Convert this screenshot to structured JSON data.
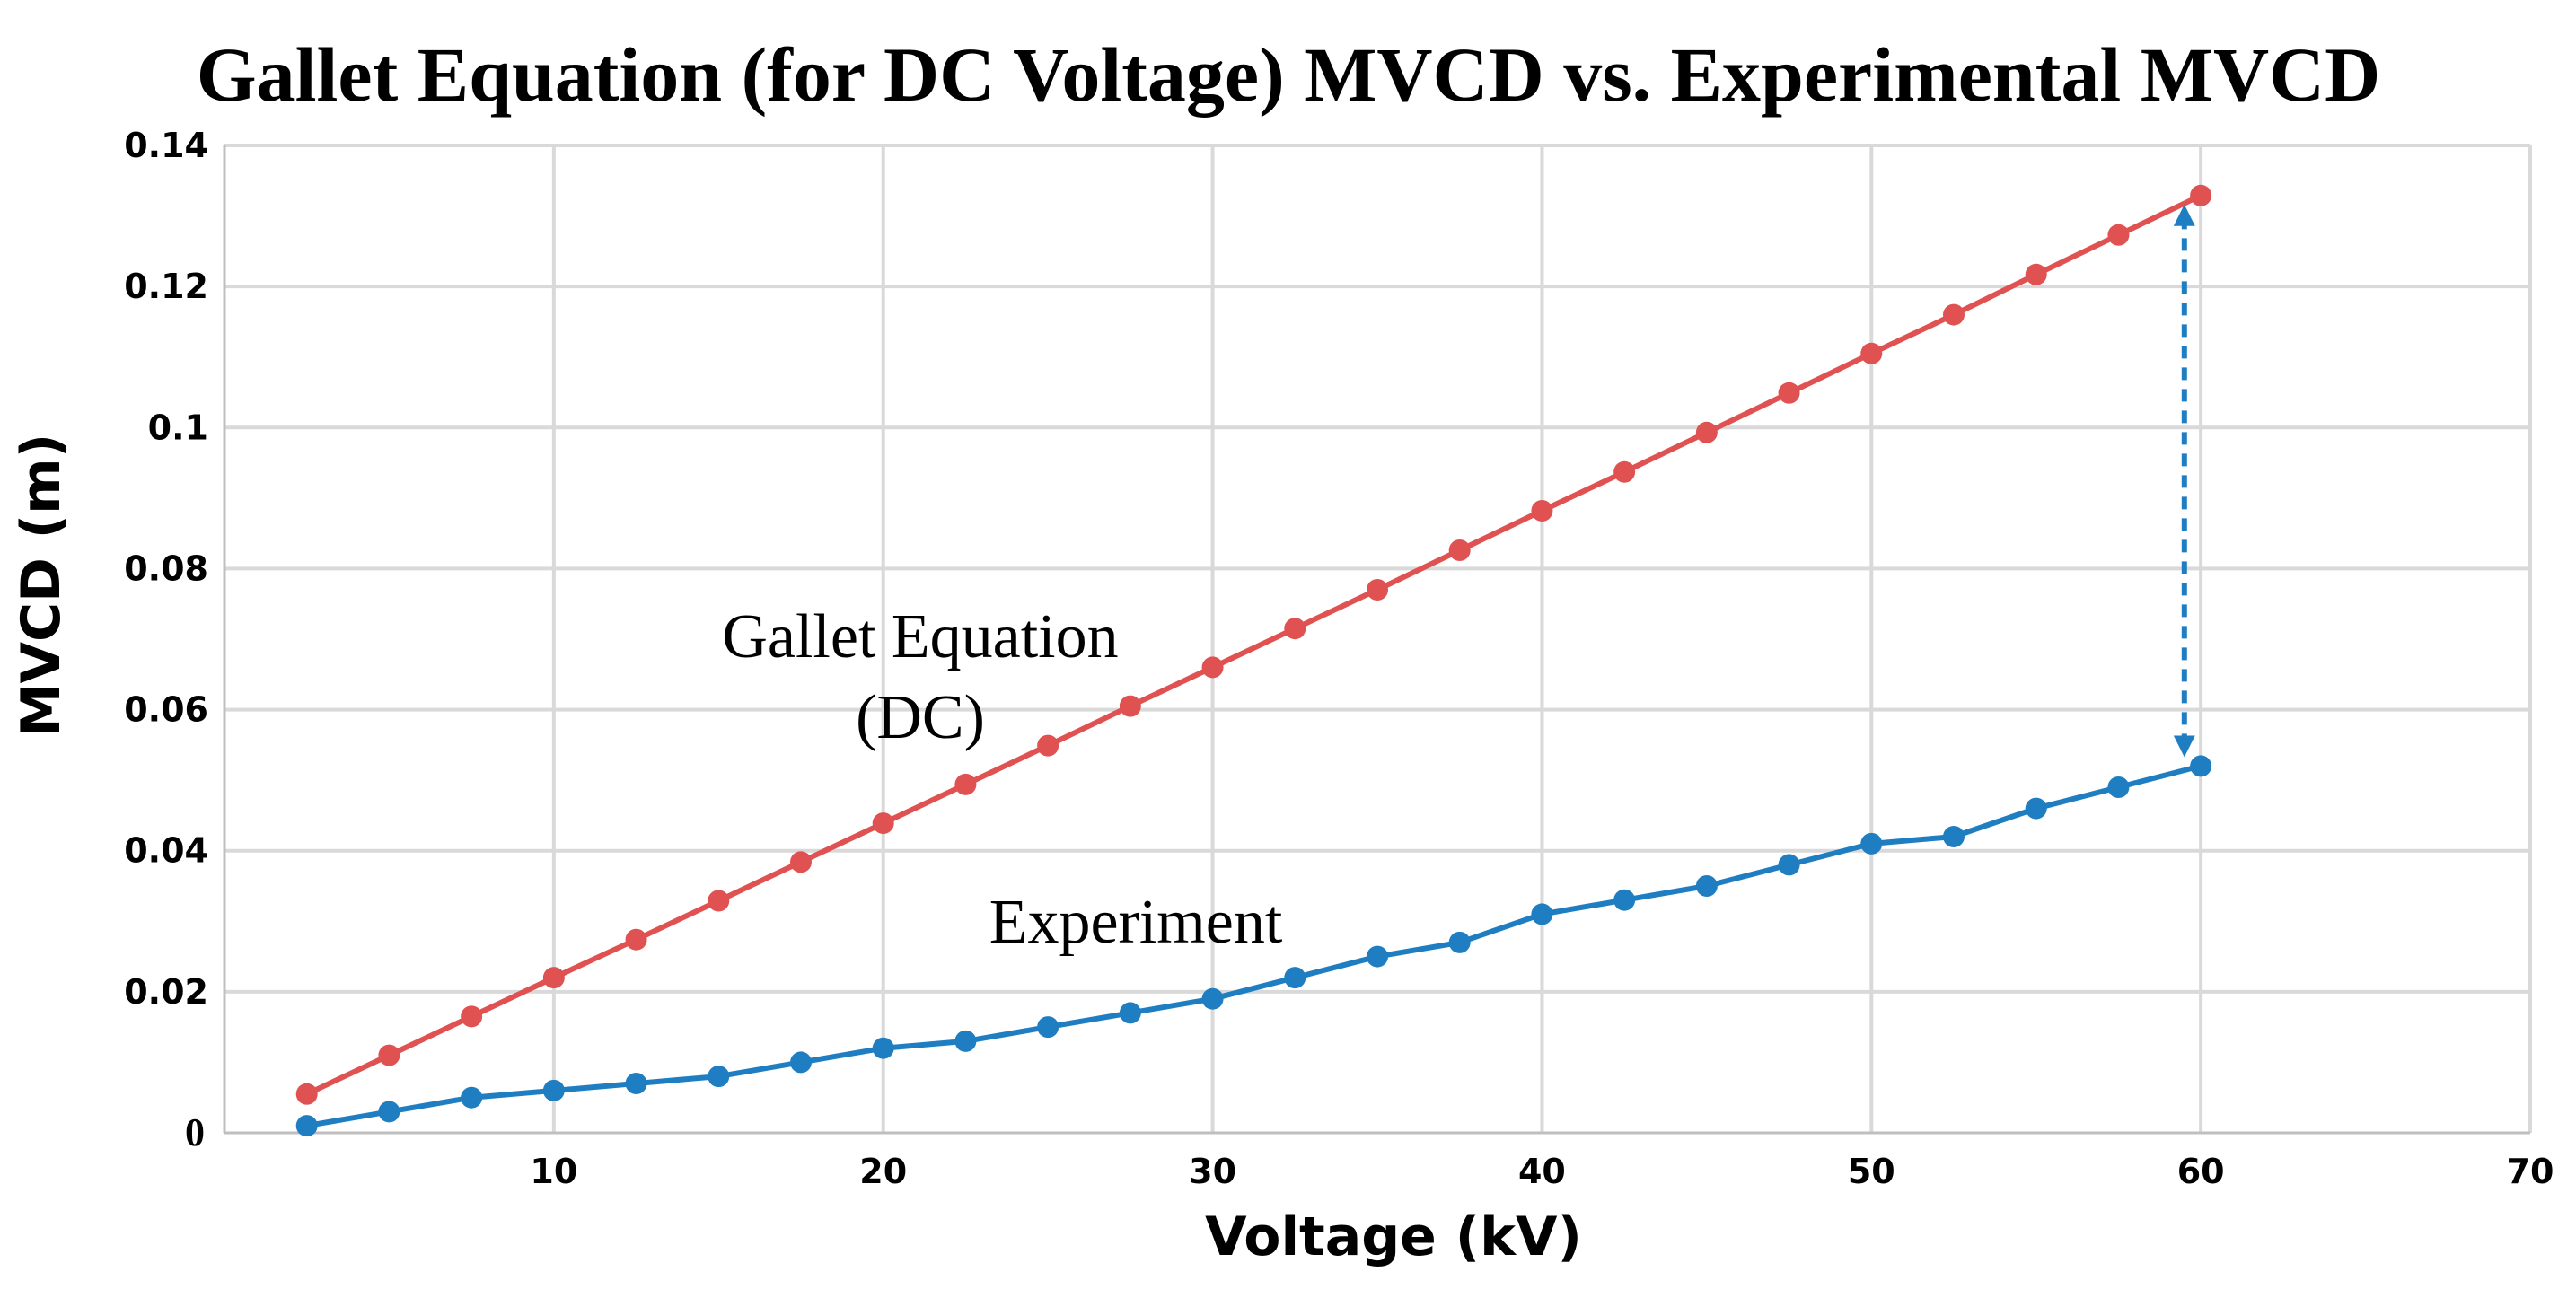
{
  "colors": {
    "gallet": "#e05252",
    "experiment": "#1f7ec2",
    "arrow": "#1f7ec2",
    "grid": "#d9d9d9"
  },
  "chart_data": {
    "type": "line",
    "title": "Gallet Equation (for DC Voltage) MVCD vs. Experimental MVCD",
    "xlabel": "Voltage (kV)",
    "ylabel": "MVCD (m)",
    "xlim": [
      0,
      70
    ],
    "ylim": [
      0,
      0.14
    ],
    "grid": true,
    "x_ticks": [
      10,
      20,
      30,
      40,
      50,
      60,
      70
    ],
    "y_ticks": [
      0,
      0.02,
      0.04,
      0.06,
      0.08,
      0.1,
      0.12,
      0.14
    ],
    "x_tick_labels": [
      "10",
      "20",
      "30",
      "40",
      "50",
      "60",
      "70"
    ],
    "y_tick_labels": [
      "0",
      "0.02",
      "0.04",
      "0.06",
      "0.08",
      "0.1",
      "0.12",
      "0.14"
    ],
    "x": [
      2.5,
      5,
      7.5,
      10,
      12.5,
      15,
      17.5,
      20,
      22.5,
      25,
      27.5,
      30,
      32.5,
      35,
      37.5,
      40,
      42.5,
      45,
      47.5,
      50,
      52.5,
      55,
      57.5,
      60
    ],
    "series": [
      {
        "name": "Gallet Equation (DC)",
        "color_key": "gallet",
        "values": [
          0.0055,
          0.011,
          0.0165,
          0.022,
          0.0274,
          0.0329,
          0.0384,
          0.0439,
          0.0494,
          0.0549,
          0.0605,
          0.066,
          0.0715,
          0.077,
          0.0826,
          0.0882,
          0.0937,
          0.0993,
          0.1049,
          0.1105,
          0.116,
          0.1217,
          0.1273,
          0.1329
        ]
      },
      {
        "name": "Experiment",
        "color_key": "experiment",
        "values": [
          0.001,
          0.003,
          0.005,
          0.006,
          0.007,
          0.008,
          0.01,
          0.012,
          0.013,
          0.015,
          0.017,
          0.019,
          0.022,
          0.025,
          0.027,
          0.031,
          0.033,
          0.035,
          0.038,
          0.041,
          0.042,
          0.046,
          0.049,
          0.052
        ]
      }
    ],
    "annotations": [
      {
        "lines": [
          "Gallet Equation",
          "(DC)"
        ],
        "series": "Gallet Equation (DC)"
      },
      {
        "lines": [
          "Experiment"
        ],
        "series": "Experiment"
      }
    ],
    "gap_arrow": {
      "x": 59.5,
      "y_from": 0.052,
      "y_to": 0.1329,
      "style": "dashed-double-headed"
    }
  }
}
